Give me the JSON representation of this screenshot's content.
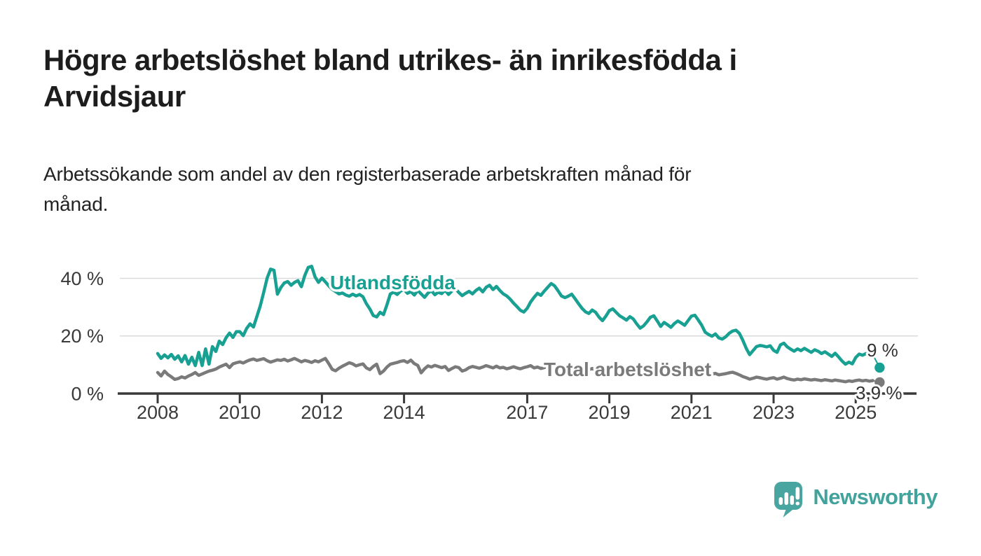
{
  "header": {
    "title_lines": [
      "Högre arbetslöshet bland utrikes- än inrikesfödda i",
      "Arvidsjaur"
    ],
    "subtitle_lines": [
      "Arbetssökande som andel av den registerbaserade arbetskraften månad för",
      "månad."
    ]
  },
  "chart_data": {
    "type": "line",
    "title": "Högre arbetslöshet bland utrikes- än inrikesfödda i Arvidsjaur",
    "subtitle": "Arbetssökande som andel av den registerbaserade arbetskraften månad för månad.",
    "unit": "%",
    "x": {
      "start": "2008-01",
      "end": "2025-08",
      "frequency": "monthly"
    },
    "x_tick_years": [
      2008,
      2010,
      2012,
      2014,
      2017,
      2019,
      2021,
      2023,
      2025
    ],
    "y_ticks": [
      {
        "value": 0,
        "label": "0 %"
      },
      {
        "value": 20,
        "label": "20 %"
      },
      {
        "value": 40,
        "label": "40 %"
      }
    ],
    "ylim": [
      0,
      46
    ],
    "grid": "horizontal-only",
    "legend": "inline-labels",
    "colors": {
      "grid": "#dadada",
      "axis": "#3a3a3a",
      "tick_text": "#3a3a3a",
      "end_label_text": "#333333"
    },
    "series": [
      {
        "name": "Utlandsfödda",
        "color": "#18a092",
        "end_label": "9 %",
        "end_value": 9.0,
        "values": [
          13.9,
          12.2,
          13.4,
          12.4,
          13.6,
          11.9,
          13.1,
          11.0,
          13.2,
          10.2,
          12.6,
          9.7,
          14.3,
          9.7,
          15.5,
          10.2,
          16.3,
          14.6,
          18.2,
          17.0,
          19.4,
          21.0,
          19.5,
          21.5,
          21.5,
          20.1,
          22.6,
          24.2,
          23.1,
          26.8,
          30.5,
          35.2,
          40.1,
          43.2,
          42.8,
          34.5,
          36.8,
          38.4,
          38.9,
          37.6,
          38.6,
          39.2,
          37.1,
          41.0,
          43.8,
          44.2,
          40.5,
          38.6,
          40.1,
          38.8,
          37.4,
          36.2,
          35.4,
          34.6,
          34.9,
          34.2,
          33.8,
          34.5,
          33.9,
          34.4,
          33.6,
          31.2,
          29.4,
          27.1,
          26.6,
          28.2,
          27.4,
          30.8,
          34.6,
          35.2,
          34.4,
          35.6,
          36.1,
          34.8,
          35.4,
          34.2,
          35.8,
          34.6,
          33.4,
          34.9,
          35.7,
          34.3,
          35.2,
          34.7,
          35.9,
          34.4,
          35.6,
          36.4,
          35.1,
          34.0,
          34.8,
          35.5,
          34.6,
          35.8,
          36.6,
          35.3,
          36.9,
          37.6,
          36.1,
          37.2,
          35.8,
          34.6,
          33.9,
          32.8,
          31.4,
          30.2,
          28.9,
          28.3,
          29.6,
          31.8,
          33.4,
          34.8,
          34.1,
          35.6,
          36.9,
          38.2,
          37.4,
          35.7,
          33.9,
          33.3,
          33.8,
          34.5,
          32.9,
          31.2,
          29.6,
          28.4,
          27.8,
          29.0,
          28.2,
          26.5,
          25.3,
          26.9,
          28.8,
          29.4,
          28.2,
          27.0,
          26.3,
          25.5,
          26.7,
          25.9,
          24.2,
          22.7,
          23.5,
          24.9,
          26.5,
          27.0,
          25.2,
          23.3,
          24.7,
          23.9,
          23.0,
          24.3,
          25.2,
          24.5,
          23.7,
          25.3,
          26.9,
          27.2,
          25.5,
          23.7,
          21.3,
          20.5,
          19.9,
          20.7,
          19.3,
          18.9,
          19.7,
          20.9,
          21.7,
          22.0,
          20.9,
          18.5,
          15.7,
          13.5,
          14.9,
          16.3,
          16.7,
          16.5,
          16.2,
          16.6,
          15.0,
          14.3,
          16.9,
          17.5,
          16.2,
          15.4,
          14.7,
          15.5,
          14.9,
          15.7,
          15.0,
          14.3,
          15.2,
          14.7,
          13.9,
          14.5,
          13.7,
          12.9,
          14.0,
          12.7,
          11.3,
          10.2,
          10.9,
          10.3,
          12.5,
          13.7,
          13.3,
          13.9,
          13.2,
          13.5,
          13.0,
          9.0
        ]
      },
      {
        "name": "Total arbetslöshet",
        "color": "#7a7a7a",
        "end_label": "3,9 %",
        "end_value": 3.9,
        "values": [
          7.3,
          6.1,
          7.8,
          6.6,
          5.8,
          4.9,
          5.2,
          5.8,
          5.4,
          6.1,
          6.6,
          7.3,
          6.3,
          6.8,
          7.3,
          7.8,
          8.1,
          8.5,
          9.2,
          9.7,
          10.2,
          9.0,
          10.3,
          10.7,
          11.0,
          10.6,
          11.2,
          11.7,
          12.0,
          11.5,
          11.8,
          12.1,
          11.4,
          10.9,
          11.3,
          11.7,
          11.5,
          11.9,
          11.3,
          11.7,
          12.2,
          11.6,
          11.0,
          11.5,
          11.2,
          10.8,
          11.4,
          11.0,
          11.6,
          12.2,
          10.4,
          8.4,
          7.9,
          8.8,
          9.5,
          10.1,
          10.7,
          10.3,
          9.6,
          10.0,
          10.3,
          8.9,
          8.3,
          9.4,
          10.2,
          6.9,
          7.8,
          9.2,
          10.2,
          10.5,
          10.8,
          11.2,
          11.4,
          10.8,
          11.6,
          10.4,
          9.8,
          7.2,
          8.6,
          9.6,
          9.2,
          9.8,
          9.4,
          9.0,
          9.4,
          8.0,
          8.7,
          9.3,
          9.0,
          7.8,
          8.2,
          9.0,
          9.4,
          9.1,
          8.8,
          9.2,
          9.7,
          9.3,
          8.9,
          9.5,
          8.9,
          9.1,
          8.6,
          8.9,
          9.3,
          8.9,
          8.6,
          9.0,
          9.3,
          9.7,
          8.9,
          9.2,
          8.7,
          9.0,
          9.5,
          9.9,
          9.2,
          8.9,
          8.5,
          8.8,
          9.0,
          9.3,
          8.7,
          8.5,
          8.2,
          8.0,
          8.3,
          8.7,
          8.2,
          7.9,
          7.7,
          8.0,
          8.3,
          8.5,
          8.2,
          7.9,
          7.7,
          7.5,
          7.9,
          7.7,
          7.3,
          7.5,
          7.2,
          7.7,
          8.0,
          8.2,
          8.5,
          8.7,
          8.3,
          8.5,
          8.2,
          8.0,
          7.7,
          7.5,
          7.3,
          7.7,
          7.9,
          7.7,
          7.5,
          7.3,
          7.0,
          6.9,
          6.7,
          7.0,
          6.5,
          6.7,
          6.9,
          7.2,
          7.4,
          7.0,
          6.5,
          5.9,
          5.5,
          5.0,
          5.3,
          5.7,
          5.5,
          5.2,
          5.0,
          5.3,
          5.5,
          5.0,
          5.3,
          5.7,
          5.2,
          4.9,
          4.7,
          5.0,
          4.8,
          5.1,
          4.9,
          4.7,
          4.9,
          4.7,
          4.5,
          4.8,
          4.6,
          4.4,
          4.7,
          4.5,
          4.3,
          4.1,
          4.4,
          4.2,
          4.5,
          4.7,
          4.4,
          4.6,
          4.3,
          4.5,
          4.2,
          3.9
        ]
      }
    ]
  },
  "footer": {
    "logo_text": "Newsworthy",
    "logo_icon": "bar-chart-speech-bubble-icon",
    "logo_color": "#48a59f"
  }
}
